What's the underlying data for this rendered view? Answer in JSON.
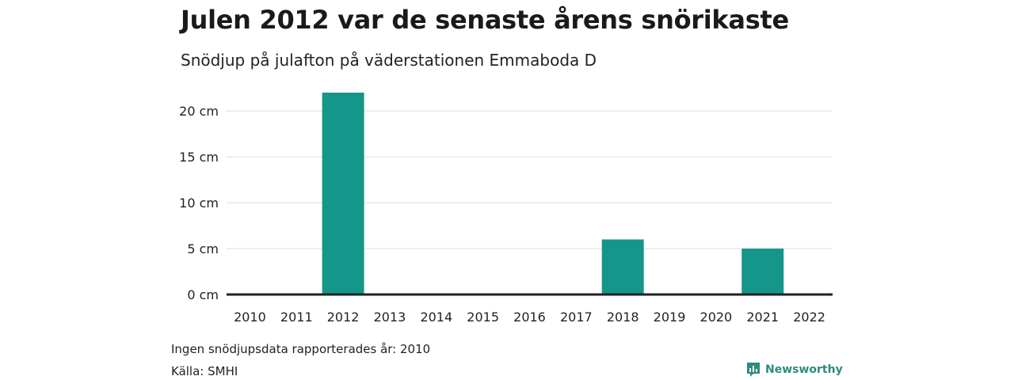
{
  "title": "Julen 2012 var de senaste årens snörikaste",
  "subtitle": "Snödjup på julafton på väderstationen Emmaboda D",
  "notes": {
    "missing": "Ingen snödjupsdata rapporterades år: 2010",
    "source": "Källa: SMHI"
  },
  "brand": {
    "name": "Newsworthy",
    "icon": "newsworthy-logo-icon",
    "color": "#2e8b7e"
  },
  "colors": {
    "bar": "#14968a",
    "grid": "#dddddd",
    "baseline": "#222222"
  },
  "chart_data": {
    "type": "bar",
    "categories": [
      "2010",
      "2011",
      "2012",
      "2013",
      "2014",
      "2015",
      "2016",
      "2017",
      "2018",
      "2019",
      "2020",
      "2021",
      "2022"
    ],
    "values": [
      null,
      0,
      22,
      0,
      0,
      0,
      0,
      0,
      6,
      0,
      0,
      5,
      0
    ],
    "yticks": [
      0,
      5,
      10,
      15,
      20
    ],
    "ytick_labels": [
      "0 cm",
      "5 cm",
      "10 cm",
      "15 cm",
      "20 cm"
    ],
    "ylim": [
      0,
      22
    ],
    "unit": "cm",
    "grid": true,
    "legend": "none"
  }
}
